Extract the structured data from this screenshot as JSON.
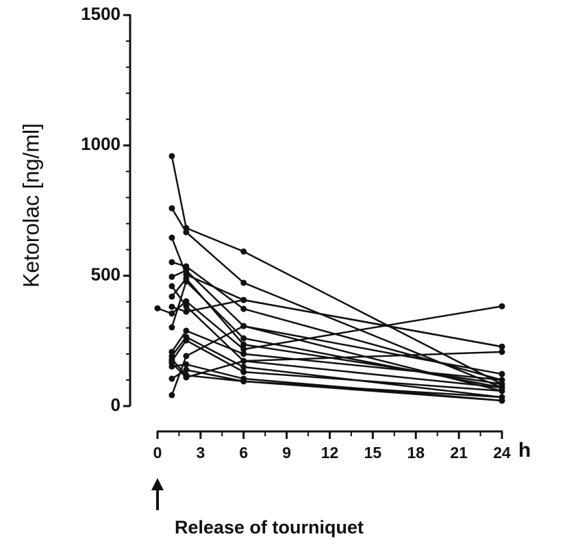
{
  "chart_data": {
    "type": "line",
    "y_label": "Ketorolac [ng/ml]",
    "x_unit": "h",
    "annotation": "Release of tourniquet",
    "x": [
      0,
      1,
      2,
      6,
      24
    ],
    "color": "#111111",
    "ylim": [
      0,
      1500
    ],
    "yticks": [
      0,
      500,
      1000,
      1500
    ],
    "yminorticks": [
      100,
      200,
      300,
      400,
      600,
      700,
      800,
      900,
      1100,
      1200,
      1300,
      1400
    ],
    "xlim": [
      0,
      24
    ],
    "xticks": [
      0,
      3,
      6,
      9,
      12,
      15,
      18,
      21,
      24
    ],
    "xminorticks": [
      1.5,
      4.5,
      7.5,
      10.5,
      13.5,
      16.5,
      19.5,
      22.5
    ],
    "series": [
      {
        "values": [
          null,
          959,
          683,
          593,
          84
        ]
      },
      {
        "values": [
          null,
          759,
          667,
          473,
          71
        ]
      },
      {
        "values": [
          null,
          646,
          504,
          407,
          228
        ]
      },
      {
        "values": [
          null,
          552,
          536,
          373,
          100
        ]
      },
      {
        "values": [
          null,
          496,
          520,
          307,
          58
        ]
      },
      {
        "values": [
          null,
          460,
          383,
          173,
          208
        ]
      },
      {
        "values": [
          null,
          420,
          489,
          236,
          84
        ]
      },
      {
        "values": [
          null,
          381,
          362,
          407,
          228
        ]
      },
      {
        "values": [
          375,
          355,
          402,
          218,
          383
        ]
      },
      {
        "values": [
          null,
          302,
          478,
          260,
          71
        ]
      },
      {
        "values": [
          null,
          208,
          289,
          200,
          100
        ]
      },
      {
        "values": [
          null,
          192,
          265,
          150,
          34
        ]
      },
      {
        "values": [
          null,
          173,
          252,
          131,
          58
        ]
      },
      {
        "values": [
          null,
          152,
          160,
          105,
          21
        ]
      },
      {
        "values": [
          null,
          105,
          139,
          95,
          34
        ]
      },
      {
        "values": [
          null,
          42,
          192,
          307,
          123
        ]
      },
      {
        "values": [
          null,
          180,
          118,
          95,
          21
        ]
      },
      {
        "values": [
          null,
          165,
          110,
          173,
          71
        ]
      }
    ]
  }
}
